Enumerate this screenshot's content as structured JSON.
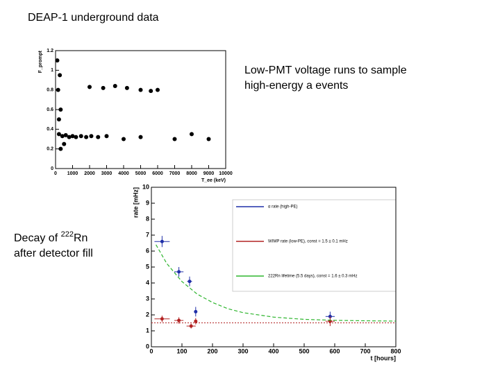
{
  "header": {
    "title": "DEAP-1 underground data"
  },
  "notes": [
    "Low-PMT voltage runs to sample",
    "high-energy a events"
  ],
  "caption": {
    "prefix": "Decay of ",
    "superscript": "222",
    "suffix": "Rn",
    "line2": "after detector fill"
  },
  "chart_data": [
    {
      "type": "scatter",
      "xlabel": "T_ee (keV)",
      "ylabel": "F_prompt",
      "xlim": [
        0,
        10000
      ],
      "xticks": [
        0,
        1000,
        2000,
        3000,
        4000,
        5000,
        6000,
        7000,
        8000,
        9000,
        10000
      ],
      "ylim": [
        0,
        1.2
      ],
      "yticks": [
        0,
        0.2,
        0.4,
        0.6,
        0.8,
        1,
        1.2
      ],
      "color": "#000000",
      "series": [
        {
          "x": [
            200,
            400,
            600,
            800,
            1000,
            1200,
            1500,
            1800,
            2100,
            2500,
            3000,
            200,
            300,
            150,
            250,
            100,
            500,
            300,
            2000,
            2800,
            3500,
            4200,
            5000,
            5600,
            6000,
            4000,
            5000,
            7000,
            8000,
            9000
          ],
          "values": [
            0.35,
            0.33,
            0.34,
            0.32,
            0.33,
            0.32,
            0.33,
            0.32,
            0.33,
            0.32,
            0.33,
            0.5,
            0.6,
            0.8,
            0.95,
            1.1,
            0.25,
            0.2,
            0.83,
            0.82,
            0.84,
            0.82,
            0.8,
            0.79,
            0.8,
            0.3,
            0.32,
            0.3,
            0.35,
            0.3
          ]
        }
      ]
    },
    {
      "type": "errorbar",
      "xlabel": "t [hours]",
      "ylabel": "rate [mHz]",
      "xlim": [
        0,
        800
      ],
      "xticks": [
        0,
        100,
        200,
        300,
        400,
        500,
        600,
        700,
        800
      ],
      "ylim": [
        0,
        10
      ],
      "yticks": [
        0,
        1,
        2,
        3,
        4,
        5,
        6,
        7,
        8,
        9,
        10
      ],
      "series": [
        {
          "name": "α rate (high-PE)",
          "color": "#1f2fa8",
          "x": [
            35,
            90,
            125,
            145,
            585
          ],
          "values": [
            6.6,
            4.7,
            4.1,
            2.2,
            1.9
          ],
          "errors": [
            0.35,
            0.3,
            0.3,
            0.3,
            0.3
          ],
          "xerr": [
            25,
            15,
            8,
            5,
            15
          ]
        },
        {
          "name": "WIMP rate (low-PE), const = 1.5 ± 0.1 mHz",
          "color": "#b22222",
          "x": [
            35,
            90,
            130,
            145,
            585
          ],
          "values": [
            1.75,
            1.65,
            1.3,
            1.6,
            1.6
          ],
          "errors": [
            0.2,
            0.2,
            0.15,
            0.2,
            0.3
          ],
          "xerr": [
            25,
            15,
            15,
            5,
            15
          ],
          "const": 1.5
        },
        {
          "name": "222Rn lifetime (5.5 days), const = 1.6 ± 0.3 mHz",
          "color": "#2db52d",
          "line": true,
          "x": [
            15,
            50,
            100,
            150,
            200,
            250,
            300,
            400,
            500,
            600,
            700,
            800
          ],
          "values": [
            6.4,
            5.23,
            4.09,
            3.3,
            2.78,
            2.39,
            2.14,
            1.86,
            1.72,
            1.66,
            1.63,
            1.61
          ]
        }
      ]
    }
  ]
}
